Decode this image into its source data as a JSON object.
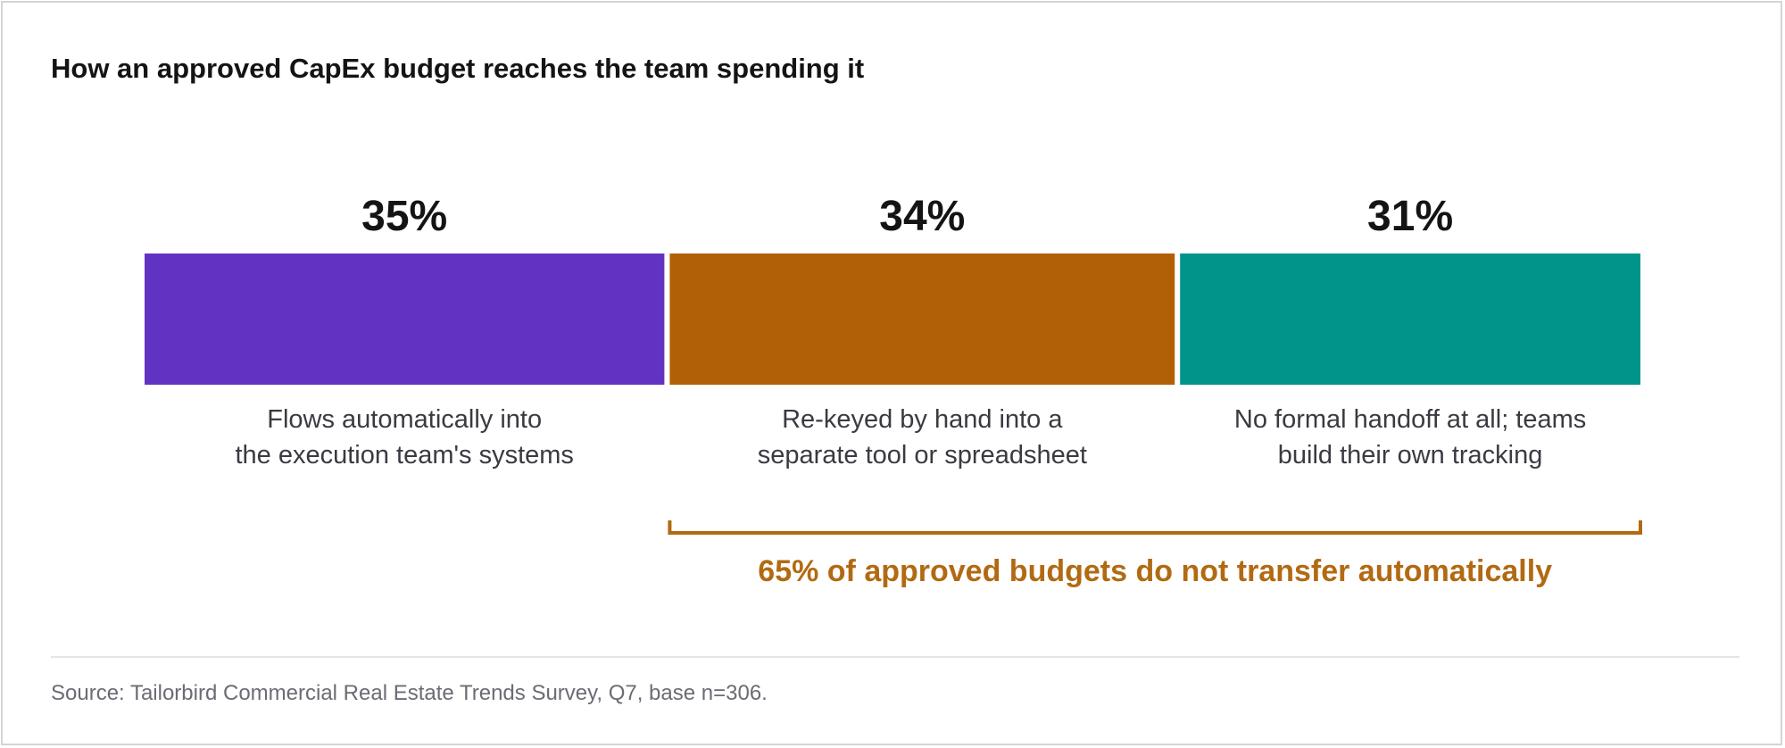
{
  "header": {
    "title": "How an approved CapEx budget reaches the team spending it"
  },
  "chart_data": {
    "type": "bar",
    "orientation": "stacked-horizontal-100",
    "categories": [
      [
        "Flows automatically into",
        "the execution team's systems"
      ],
      [
        "Re-keyed by hand into a",
        "separate tool or spreadsheet"
      ],
      [
        "No formal handoff at all; teams",
        "build their own tracking"
      ]
    ],
    "values": [
      35,
      34,
      31
    ],
    "value_labels": [
      "35%",
      "34%",
      "31%"
    ],
    "colors": [
      "#6233c2",
      "#b26006",
      "#00948a"
    ],
    "unit": "%",
    "bracket": {
      "from_index": 1,
      "to_index": 2,
      "label": "65% of approved budgets do not transfer automatically",
      "color": "#b26a12"
    },
    "legend": "none",
    "grid": false
  },
  "footer": {
    "source": "Source: Tailorbird Commercial Real Estate Trends Survey, Q7, base n=306."
  }
}
